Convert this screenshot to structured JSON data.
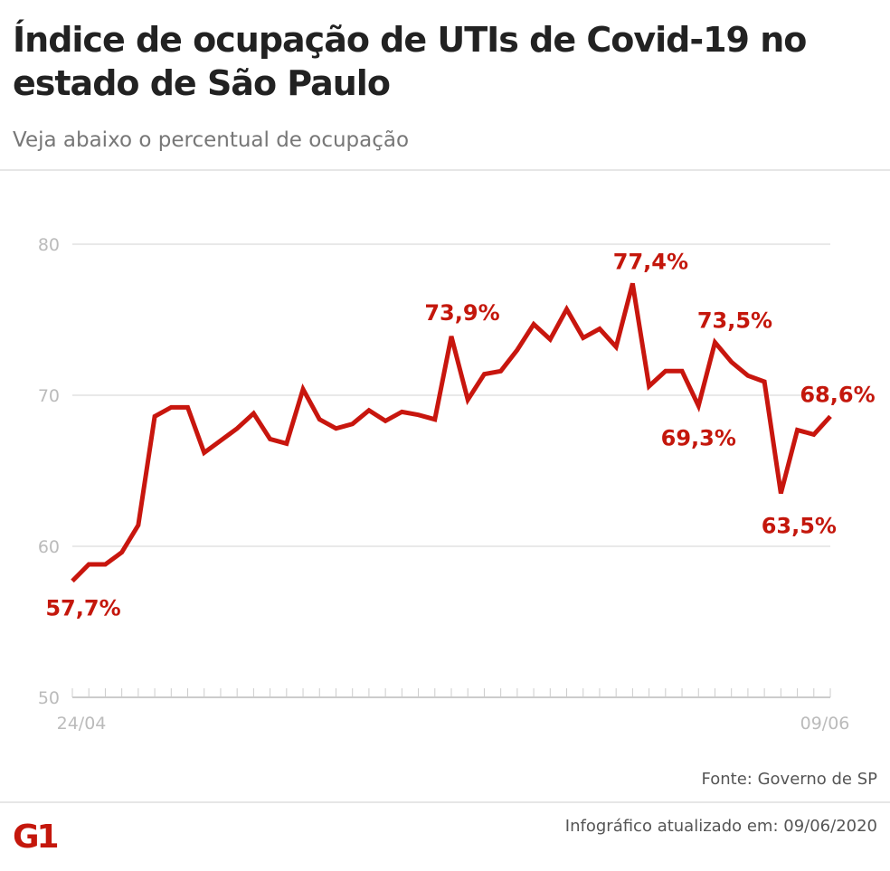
{
  "header": {
    "title": "Índice de ocupação de UTIs de Covid-19 no estado de São Paulo",
    "subtitle": "Veja abaixo o percentual de ocupação"
  },
  "footer": {
    "source": "Fonte: Governo de SP",
    "updated": "Infográfico atualizado em: 09/06/2020",
    "logo": "G1"
  },
  "colors": {
    "line": "#c8160e",
    "label": "#c4170c",
    "grid": "#e2e2e2",
    "axis_text": "#bbbbbb",
    "logo": "#c4170c"
  },
  "chart_data": {
    "type": "line",
    "title": "",
    "xlabel": "",
    "ylabel": "",
    "ylim": [
      50,
      80
    ],
    "yticks": [
      50,
      60,
      70,
      80
    ],
    "x_tick_labels": [
      "24/04",
      "09/06"
    ],
    "x": [
      "24/04",
      "25/04",
      "26/04",
      "27/04",
      "28/04",
      "29/04",
      "30/04",
      "01/05",
      "02/05",
      "03/05",
      "04/05",
      "05/05",
      "06/05",
      "07/05",
      "08/05",
      "09/05",
      "10/05",
      "11/05",
      "12/05",
      "13/05",
      "14/05",
      "15/05",
      "16/05",
      "17/05",
      "18/05",
      "19/05",
      "20/05",
      "21/05",
      "22/05",
      "23/05",
      "24/05",
      "25/05",
      "26/05",
      "27/05",
      "28/05",
      "29/05",
      "30/05",
      "31/05",
      "01/06",
      "02/06",
      "03/06",
      "04/06",
      "05/06",
      "06/06",
      "07/06",
      "08/06",
      "09/06"
    ],
    "values": [
      57.7,
      58.8,
      58.8,
      59.6,
      61.4,
      68.6,
      69.2,
      69.2,
      66.2,
      67.0,
      67.8,
      68.8,
      67.1,
      66.8,
      70.4,
      68.4,
      67.8,
      68.1,
      69.0,
      68.3,
      68.9,
      68.7,
      68.4,
      73.9,
      69.7,
      71.4,
      71.6,
      73.0,
      74.7,
      73.7,
      75.7,
      73.8,
      74.4,
      73.2,
      77.4,
      70.6,
      71.6,
      71.6,
      69.3,
      73.5,
      72.2,
      71.3,
      70.9,
      63.5,
      67.7,
      67.4,
      68.6
    ],
    "annotations": [
      {
        "index": 0,
        "label": "57,7%"
      },
      {
        "index": 23,
        "label": "73,9%"
      },
      {
        "index": 34,
        "label": "77,4%"
      },
      {
        "index": 38,
        "label": "69,3%"
      },
      {
        "index": 39,
        "label": "73,5%"
      },
      {
        "index": 43,
        "label": "63,5%"
      },
      {
        "index": 46,
        "label": "68,6%"
      }
    ],
    "grid": true,
    "legend": "none"
  }
}
